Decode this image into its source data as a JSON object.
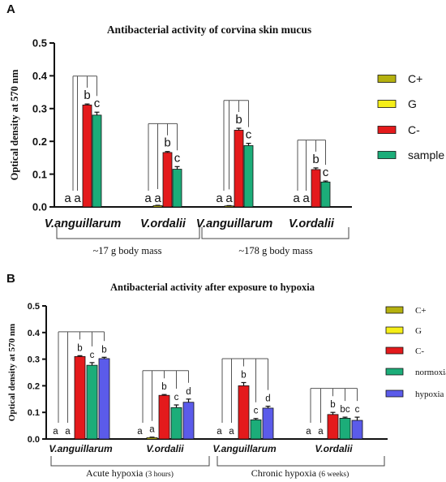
{
  "panels": [
    {
      "letter": "A",
      "chart_data": {
        "type": "bar",
        "title": "Antibacterial activity of corvina skin mucus",
        "ylabel": "Optical density at 570 nm",
        "ylim": [
          0,
          0.5
        ],
        "yticks": [
          "0.0",
          "0.1",
          "0.2",
          "0.3",
          "0.4",
          "0.5"
        ],
        "categories": [
          "V.anguillarum",
          "V.ordalii",
          "V.anguillarum",
          "V.ordalii"
        ],
        "sections": [
          "~17 g body mass",
          "~178 g body mass"
        ],
        "series": [
          {
            "name": "C+",
            "color": "#b5b10f",
            "values": [
              0,
              0,
              0,
              0
            ],
            "errors": [
              0,
              0,
              0,
              0
            ]
          },
          {
            "name": "G",
            "color": "#f5ee18",
            "values": [
              0,
              0.004,
              0.003,
              0
            ],
            "errors": [
              0,
              0.001,
              0.001,
              0
            ]
          },
          {
            "name": "C-",
            "color": "#e41a1c",
            "values": [
              0.311,
              0.166,
              0.234,
              0.114
            ],
            "errors": [
              0.003,
              0.003,
              0.006,
              0.005
            ]
          },
          {
            "name": "sample",
            "color": "#1cad79",
            "values": [
              0.28,
              0.115,
              0.187,
              0.076
            ],
            "errors": [
              0.009,
              0.008,
              0.007,
              0.003
            ]
          }
        ],
        "letters": [
          [
            "a",
            "a",
            "b",
            "c"
          ],
          [
            "a",
            "a",
            "b",
            "c"
          ],
          [
            "a",
            "a",
            "b",
            "c"
          ],
          [
            "a",
            "a",
            "b",
            "c"
          ]
        ],
        "legend_position": "right"
      }
    },
    {
      "letter": "B",
      "chart_data": {
        "type": "bar",
        "title": "Antibacterial activity after exposure to hypoxia",
        "ylabel": "Optical density at 570 nm",
        "ylim": [
          0,
          0.5
        ],
        "yticks": [
          "0.0",
          "0.1",
          "0.2",
          "0.3",
          "0.4",
          "0.5"
        ],
        "categories": [
          "V.anguillarum",
          "V.ordalii",
          "V.anguillarum",
          "V.ordalii"
        ],
        "sections": [
          {
            "main": "Acute hypoxia",
            "note": "(3 hours)"
          },
          {
            "main": "Chronic hypoxia",
            "note": "(6 weeks)"
          }
        ],
        "series": [
          {
            "name": "C+",
            "color": "#b5b10f",
            "values": [
              0,
              0,
              0,
              0
            ],
            "errors": [
              0,
              0,
              0,
              0
            ]
          },
          {
            "name": "G",
            "color": "#f5ee18",
            "values": [
              0,
              0.005,
              0,
              0
            ],
            "errors": [
              0,
              0.002,
              0,
              0
            ]
          },
          {
            "name": "C-",
            "color": "#e41a1c",
            "values": [
              0.31,
              0.164,
              0.2,
              0.092
            ],
            "errors": [
              0.003,
              0.003,
              0.012,
              0.008
            ]
          },
          {
            "name": "normoxia",
            "color": "#1cad79",
            "values": [
              0.277,
              0.118,
              0.072,
              0.078
            ],
            "errors": [
              0.01,
              0.01,
              0.005,
              0.004
            ]
          },
          {
            "name": "hypoxia",
            "color": "#5b5bea",
            "values": [
              0.302,
              0.138,
              0.116,
              0.07
            ],
            "errors": [
              0.005,
              0.012,
              0.007,
              0.012
            ]
          }
        ],
        "letters": [
          [
            "a",
            "a",
            "b",
            "c",
            "b"
          ],
          [
            "a",
            "a",
            "b",
            "c",
            "d"
          ],
          [
            "a",
            "a",
            "b",
            "c",
            "d"
          ],
          [
            "a",
            "a",
            "b",
            "bc",
            "c"
          ]
        ],
        "legend_position": "right"
      }
    }
  ]
}
